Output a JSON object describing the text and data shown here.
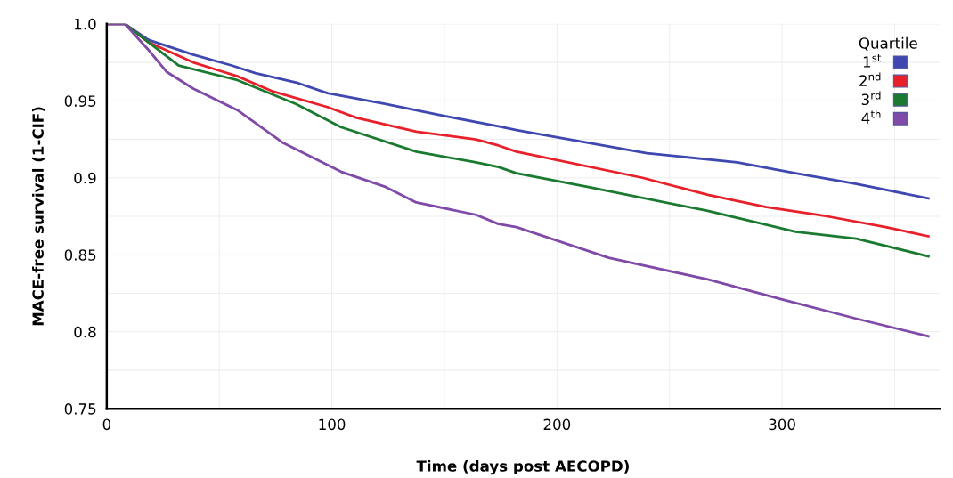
{
  "chart_data": {
    "type": "line",
    "xlabel": "Time (days post AECOPD)",
    "ylabel": "MACE-free survival (1-CIF)",
    "legend_title": "Quartile",
    "xlim": [
      0,
      370
    ],
    "ylim": [
      0.75,
      1.0
    ],
    "xticks": [
      0,
      {
        "value": 50,
        "label": null
      },
      100,
      {
        "value": 150,
        "label": null
      },
      200,
      {
        "value": 250,
        "label": null
      },
      300,
      {
        "value": 350,
        "label": null
      }
    ],
    "yticks": [
      0.75,
      {
        "value": 0.775,
        "label": null
      },
      0.8,
      {
        "value": 0.825,
        "label": null
      },
      0.85,
      {
        "value": 0.875,
        "label": null
      },
      0.9,
      {
        "value": 0.925,
        "label": null
      },
      0.95,
      {
        "value": 0.975,
        "label": null
      },
      {
        "value": 1.0,
        "label": "1.0"
      }
    ],
    "grid": true,
    "legend": "top right",
    "marker": "none",
    "line_style": "solid",
    "series": [
      {
        "name": "1$^{st}$",
        "color": "#3f48b0",
        "x": [
          0,
          8,
          18.6,
          38.4,
          55.5,
          66,
          84,
          98,
          124,
          150.6,
          174,
          182,
          240,
          280,
          306,
          333,
          365
        ],
        "values": [
          1.0,
          1.0,
          0.9896,
          0.98,
          0.973,
          0.968,
          0.962,
          0.955,
          0.948,
          0.94,
          0.9335,
          0.931,
          0.916,
          0.91,
          0.903,
          0.896,
          0.8866
        ]
      },
      {
        "name": "2$^{nd}$",
        "color": "#e8202a",
        "x": [
          0,
          8,
          18.6,
          38.4,
          58,
          74,
          98,
          111,
          137.5,
          164,
          174,
          182,
          238,
          267,
          293,
          320,
          346,
          365
        ],
        "values": [
          1.0,
          1.0,
          0.988,
          0.975,
          0.966,
          0.956,
          0.946,
          0.939,
          0.93,
          0.925,
          0.921,
          0.917,
          0.9,
          0.889,
          0.881,
          0.875,
          0.868,
          0.862
        ]
      },
      {
        "name": "3$^{rd}$",
        "color": "#1a7a30",
        "x": [
          0,
          8,
          18.6,
          32,
          58,
          84,
          104,
          137.5,
          164,
          174,
          182,
          214,
          267,
          306,
          333,
          365
        ],
        "values": [
          1.0,
          1.0,
          0.988,
          0.973,
          0.9635,
          0.948,
          0.933,
          0.917,
          0.91,
          0.907,
          0.903,
          0.894,
          0.8785,
          0.865,
          0.8605,
          0.849
        ]
      },
      {
        "name": "4$^{th}$",
        "color": "#7f4aa8",
        "x": [
          0,
          8,
          18.6,
          26.5,
          38.4,
          58,
          78,
          104,
          124,
          137.5,
          164,
          174,
          182,
          223,
          267,
          300,
          333,
          365
        ],
        "values": [
          1.0,
          1.0,
          0.983,
          0.969,
          0.958,
          0.944,
          0.923,
          0.904,
          0.894,
          0.884,
          0.876,
          0.87,
          0.868,
          0.848,
          0.834,
          0.821,
          0.8085,
          0.797
        ]
      }
    ]
  }
}
